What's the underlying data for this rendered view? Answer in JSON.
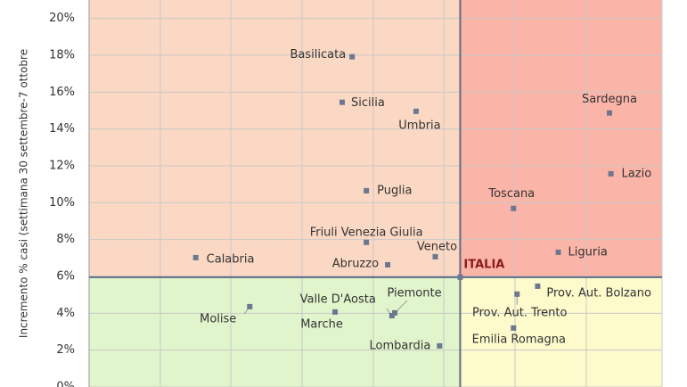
{
  "chart_data": {
    "type": "scatter",
    "y_label": "Incremento %  casi (settimana 30 settembre-7 ottobre",
    "ylim": [
      0,
      21
    ],
    "yticks": [
      {
        "value": 0,
        "label": "0%"
      },
      {
        "value": 2,
        "label": "2%"
      },
      {
        "value": 4,
        "label": "4%"
      },
      {
        "value": 6,
        "label": "6%"
      },
      {
        "value": 8,
        "label": "8%"
      },
      {
        "value": 10,
        "label": "10%"
      },
      {
        "value": 12,
        "label": "12%"
      },
      {
        "value": 14,
        "label": "14%"
      },
      {
        "value": 16,
        "label": "16%"
      },
      {
        "value": 18,
        "label": "18%"
      },
      {
        "value": 20,
        "label": "20%"
      }
    ],
    "xlim": [
      0,
      8.06
    ],
    "grid": true,
    "color": "#6b7890",
    "quadrant_colors": [
      "#fbd8c4",
      "#fbb4a8",
      "#e1f5cc",
      "#fdfbcc"
    ],
    "reference": {
      "label": "ITALIA",
      "x": 5.22,
      "y": 5.96,
      "color": "#8b1a1a"
    },
    "points": [
      {
        "label": "Basilicata",
        "x": 3.7,
        "y": 17.92
      },
      {
        "label": "Sicilia",
        "x": 3.56,
        "y": 15.45
      },
      {
        "label": "Umbria",
        "x": 4.6,
        "y": 14.96
      },
      {
        "label": "Sardegna",
        "x": 7.32,
        "y": 14.87
      },
      {
        "label": "Lazio",
        "x": 7.34,
        "y": 11.57
      },
      {
        "label": "Toscana",
        "x": 5.97,
        "y": 9.69
      },
      {
        "label": "Puglia",
        "x": 3.9,
        "y": 10.65
      },
      {
        "label": "Friuli Venezia Giulia",
        "x": 3.9,
        "y": 7.85
      },
      {
        "label": "Liguria",
        "x": 6.6,
        "y": 7.31
      },
      {
        "label": "Calabria",
        "x": 1.5,
        "y": 7.02
      },
      {
        "label": "Abruzzo",
        "x": 4.2,
        "y": 6.63
      },
      {
        "label": "Veneto",
        "x": 4.87,
        "y": 7.07
      },
      {
        "label": "Prov. Aut. Bolzano",
        "x": 6.31,
        "y": 5.47
      },
      {
        "label": "Prov. Aut. Trento",
        "x": 6.02,
        "y": 5.04
      },
      {
        "label": "Piemonte",
        "x": 4.3,
        "y": 4.02
      },
      {
        "label": "Valle D'Aosta",
        "x": 4.26,
        "y": 3.87
      },
      {
        "label": "Molise",
        "x": 2.26,
        "y": 4.36
      },
      {
        "label": "Marche",
        "x": 3.46,
        "y": 4.07
      },
      {
        "label": "Emilia Romagna",
        "x": 5.97,
        "y": 3.2
      },
      {
        "label": "Lombardia",
        "x": 4.93,
        "y": 2.23
      }
    ]
  }
}
